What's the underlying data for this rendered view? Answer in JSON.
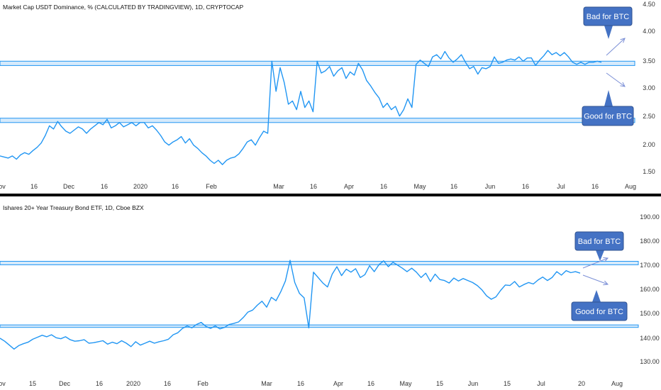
{
  "colors": {
    "line": "#2196f3",
    "zone_fill": "#d6eafb",
    "zone_stroke": "#2196f3",
    "callout_fill": "#4472c4",
    "callout_stroke": "#2f528f",
    "arrow": "#7b8fd6",
    "divider": "#000000",
    "axis_text": "#333333"
  },
  "chart_data": [
    {
      "type": "line",
      "title": "Market Cap USDT Dominance, % (CALCULATED BY TRADINGVIEW), 1D, CRYPTOCAP",
      "x_tick_labels": [
        "ov",
        "16",
        "Dec",
        "16",
        "2020",
        "16",
        "Feb",
        "Mar",
        "16",
        "Apr",
        "16",
        "May",
        "16",
        "Jun",
        "16",
        "Jul",
        "16",
        "Aug"
      ],
      "y_tick_labels": [
        "4.50",
        "4.00",
        "3.50",
        "3.00",
        "2.50",
        "2.00",
        "1.50"
      ],
      "ylim": [
        1.35,
        4.55
      ],
      "grid": false,
      "zones": [
        [
          3.4,
          3.48
        ],
        [
          2.34,
          2.42
        ]
      ],
      "callouts": [
        {
          "text": "Bad for BTC",
          "direction": "up"
        },
        {
          "text": "Good for BTC",
          "direction": "down"
        }
      ],
      "series": [
        {
          "values": [
            1.72,
            1.7,
            1.68,
            1.72,
            1.66,
            1.74,
            1.78,
            1.75,
            1.82,
            1.88,
            1.96,
            2.1,
            2.28,
            2.22,
            2.36,
            2.26,
            2.18,
            2.14,
            2.2,
            2.26,
            2.22,
            2.14,
            2.22,
            2.28,
            2.34,
            2.3,
            2.4,
            2.24,
            2.28,
            2.34,
            2.26,
            2.3,
            2.34,
            2.28,
            2.34,
            2.34,
            2.24,
            2.28,
            2.2,
            2.1,
            1.98,
            1.92,
            1.98,
            2.02,
            2.08,
            1.96,
            2.04,
            1.92,
            1.86,
            1.78,
            1.72,
            1.64,
            1.58,
            1.64,
            1.56,
            1.64,
            1.68,
            1.7,
            1.76,
            1.86,
            1.98,
            2.02,
            1.92,
            2.06,
            2.18,
            2.14,
            3.48,
            2.92,
            3.36,
            3.08,
            2.68,
            2.74,
            2.58,
            2.92,
            2.62,
            2.74,
            2.54,
            3.48,
            3.26,
            3.3,
            3.38,
            3.2,
            3.3,
            3.36,
            3.16,
            3.28,
            3.22,
            3.44,
            3.32,
            3.12,
            3.02,
            2.9,
            2.8,
            2.62,
            2.7,
            2.58,
            2.64,
            2.46,
            2.58,
            2.78,
            2.62,
            3.42,
            3.5,
            3.44,
            3.38,
            3.56,
            3.6,
            3.52,
            3.66,
            3.54,
            3.46,
            3.52,
            3.6,
            3.46,
            3.34,
            3.38,
            3.24,
            3.36,
            3.34,
            3.38,
            3.56,
            3.44,
            3.46,
            3.5,
            3.52,
            3.5,
            3.56,
            3.48,
            3.54,
            3.54,
            3.4,
            3.5,
            3.58,
            3.68,
            3.6,
            3.64,
            3.58,
            3.64,
            3.56,
            3.46,
            3.42,
            3.46,
            3.42,
            3.46,
            3.46,
            3.48,
            3.46
          ]
        }
      ]
    },
    {
      "type": "line",
      "title": "Ishares 20+ Year Treasury Bond ETF, 1D, Cboe BZX",
      "x_tick_labels": [
        "ov",
        "15",
        "Dec",
        "16",
        "2020",
        "16",
        "Feb",
        "Mar",
        "16",
        "Apr",
        "16",
        "May",
        "15",
        "Jun",
        "15",
        "Jul",
        "20",
        "Aug"
      ],
      "y_tick_labels": [
        "190.00",
        "180.00",
        "170.00",
        "160.00",
        "150.00",
        "140.00",
        "130.00"
      ],
      "ylim": [
        126,
        195
      ],
      "grid": false,
      "zones": [
        [
          169.6,
          171.0
        ],
        [
          144.2,
          145.2
        ]
      ],
      "callouts": [
        {
          "text": "Bad for BTC",
          "direction": "up"
        },
        {
          "text": "Good for BTC",
          "direction": "down"
        }
      ],
      "series": [
        {
          "values": [
            139.8,
            138.6,
            137.0,
            135.4,
            136.8,
            137.6,
            138.2,
            139.4,
            140.2,
            141.0,
            140.4,
            141.2,
            140.0,
            139.6,
            140.4,
            139.2,
            138.6,
            138.8,
            139.2,
            137.8,
            138.0,
            138.4,
            138.8,
            137.4,
            138.2,
            137.6,
            138.8,
            137.8,
            136.4,
            138.4,
            137.0,
            137.8,
            138.6,
            137.8,
            138.4,
            138.8,
            139.4,
            141.2,
            142.0,
            143.8,
            144.8,
            144.0,
            145.4,
            146.2,
            144.6,
            143.8,
            144.8,
            143.6,
            144.2,
            145.4,
            145.8,
            146.4,
            148.2,
            150.4,
            151.2,
            153.2,
            154.8,
            152.4,
            156.4,
            155.0,
            158.6,
            163.0,
            171.4,
            162.4,
            158.0,
            156.2,
            144.0,
            166.6,
            164.4,
            162.2,
            160.6,
            165.8,
            168.8,
            165.2,
            167.8,
            166.6,
            168.0,
            164.4,
            165.6,
            169.2,
            166.8,
            169.6,
            171.2,
            168.8,
            170.6,
            169.4,
            168.2,
            166.8,
            168.2,
            166.6,
            164.4,
            166.2,
            162.8,
            165.8,
            163.6,
            163.2,
            162.2,
            164.2,
            163.0,
            164.0,
            163.2,
            162.4,
            161.2,
            159.4,
            157.0,
            155.6,
            156.6,
            159.2,
            161.4,
            161.2,
            162.8,
            160.6,
            161.6,
            162.4,
            161.8,
            163.4,
            164.6,
            163.2,
            164.4,
            166.8,
            165.4,
            167.2,
            166.4,
            166.8,
            166.2
          ]
        }
      ]
    }
  ]
}
